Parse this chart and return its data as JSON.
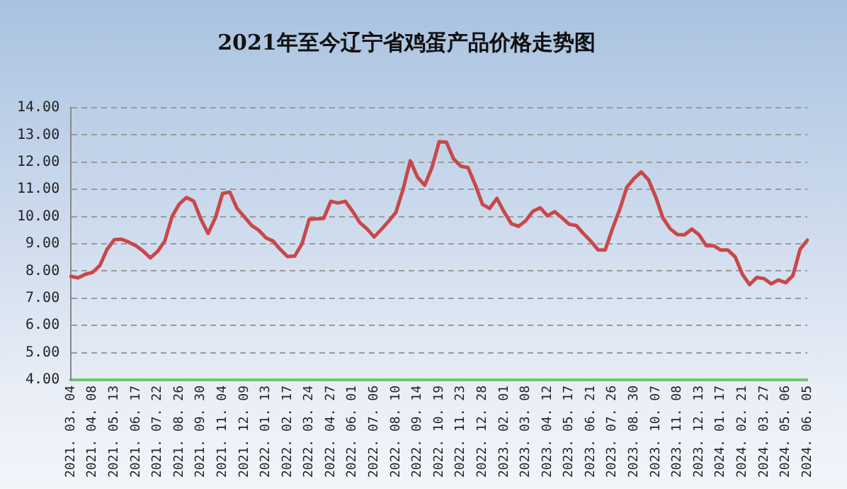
{
  "chart_data": {
    "type": "line",
    "title": "2021年至今辽宁省鸡蛋产品价格走势图",
    "categories": [
      "2021. 03. 04",
      null,
      null,
      "2021. 04. 08",
      null,
      null,
      "2021. 05. 13",
      null,
      null,
      "2021. 06. 17",
      null,
      null,
      "2021. 07. 22",
      null,
      null,
      "2021. 08. 26",
      null,
      null,
      "2021. 09. 30",
      null,
      null,
      "2021. 11. 04",
      null,
      null,
      "2021. 12. 09",
      null,
      null,
      "2022. 01. 13",
      null,
      null,
      "2022. 02. 17",
      null,
      null,
      "2022. 03. 24",
      null,
      null,
      "2022. 04. 27",
      null,
      null,
      "2022. 06. 01",
      null,
      null,
      "2022. 07. 06",
      null,
      null,
      "2022. 08. 10",
      null,
      null,
      "2022. 09. 14",
      null,
      null,
      "2022. 10. 19",
      null,
      null,
      "2022. 11. 23",
      null,
      null,
      "2022. 12. 28",
      null,
      null,
      "2023. 02. 01",
      null,
      null,
      "2023. 03. 08",
      null,
      null,
      "2023. 04. 12",
      null,
      null,
      "2023. 05. 17",
      null,
      null,
      "2023. 06. 21",
      null,
      null,
      "2023. 07. 26",
      null,
      null,
      "2023. 08. 30",
      null,
      null,
      "2023. 10. 07",
      null,
      null,
      "2023. 11. 08",
      null,
      null,
      "2023. 12. 13",
      null,
      null,
      "2024. 01. 17",
      null,
      null,
      "2024. 02. 21",
      null,
      null,
      "2024. 03. 27",
      null,
      null,
      "2024. 05. 06",
      null,
      null,
      "2024. 06. 05"
    ],
    "series": [
      {
        "color": "#c8484a",
        "values": [
          7.8,
          7.75,
          7.88,
          7.95,
          8.2,
          8.8,
          9.15,
          9.17,
          9.06,
          8.93,
          8.73,
          8.48,
          8.72,
          9.1,
          10.0,
          10.46,
          10.7,
          10.57,
          9.9,
          9.38,
          9.95,
          10.85,
          10.9,
          10.3,
          10.0,
          9.68,
          9.5,
          9.22,
          9.1,
          8.79,
          8.53,
          8.55,
          9.0,
          9.9,
          9.92,
          9.93,
          10.56,
          10.5,
          10.56,
          10.2,
          9.78,
          9.55,
          9.25,
          9.53,
          9.83,
          10.15,
          11.0,
          12.05,
          11.45,
          11.15,
          11.8,
          12.75,
          12.74,
          12.12,
          11.85,
          11.8,
          11.17,
          10.45,
          10.3,
          10.67,
          10.17,
          9.74,
          9.64,
          9.85,
          10.2,
          10.32,
          10.03,
          10.18,
          9.96,
          9.72,
          9.67,
          9.37,
          9.1,
          8.78,
          8.77,
          9.55,
          10.25,
          11.08,
          11.4,
          11.64,
          11.35,
          10.72,
          9.95,
          9.55,
          9.34,
          9.33,
          9.54,
          9.33,
          8.93,
          8.93,
          8.77,
          8.77,
          8.52,
          7.88,
          7.5,
          7.76,
          7.72,
          7.53,
          7.67,
          7.57,
          7.83,
          8.8,
          9.13
        ]
      }
    ],
    "ylim": [
      4,
      14
    ],
    "yticks": [
      {
        "value": 4,
        "label": "4.00"
      },
      {
        "value": 5,
        "label": "5.00"
      },
      {
        "value": 6,
        "label": "6.00"
      },
      {
        "value": 7,
        "label": "7.00"
      },
      {
        "value": 8,
        "label": "8.00"
      },
      {
        "value": 9,
        "label": "9.00"
      },
      {
        "value": 10,
        "label": "10.00"
      },
      {
        "value": 11,
        "label": "11.00"
      },
      {
        "value": 12,
        "label": "12.00"
      },
      {
        "value": 13,
        "label": "13.00"
      },
      {
        "value": 14,
        "label": "14.00"
      }
    ],
    "grid": "y",
    "legend": false,
    "marker": "none",
    "line_style": "solid"
  }
}
